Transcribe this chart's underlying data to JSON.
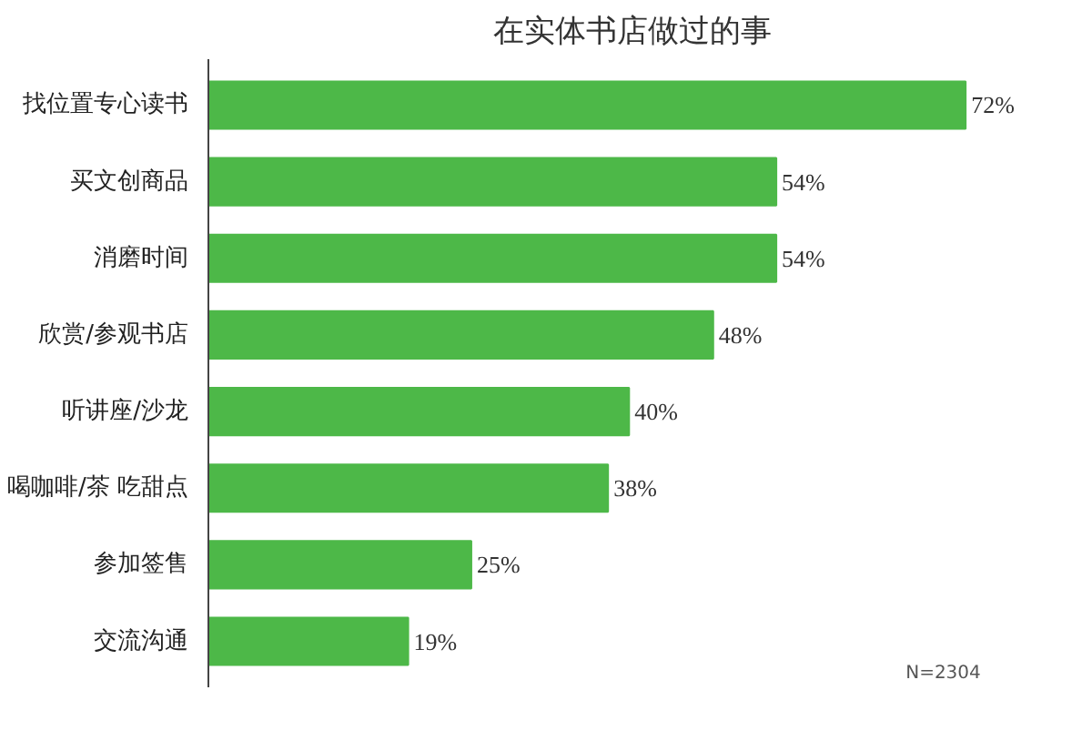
{
  "chart_data": {
    "type": "bar",
    "orientation": "horizontal",
    "title": "在实体书店做过的事",
    "categories": [
      "找位置专心读书",
      "买文创商品",
      "消磨时间",
      "欣赏/参观书店",
      "听讲座/沙龙",
      "喝咖啡/茶 吃甜点",
      "参加签售",
      "交流沟通"
    ],
    "values": [
      72,
      54,
      54,
      48,
      40,
      38,
      25,
      19
    ],
    "value_labels": [
      "72%",
      "54%",
      "54%",
      "48%",
      "40%",
      "38%",
      "25%",
      "19%"
    ],
    "color": "#4db848",
    "annotations": [
      "N=2304"
    ]
  }
}
